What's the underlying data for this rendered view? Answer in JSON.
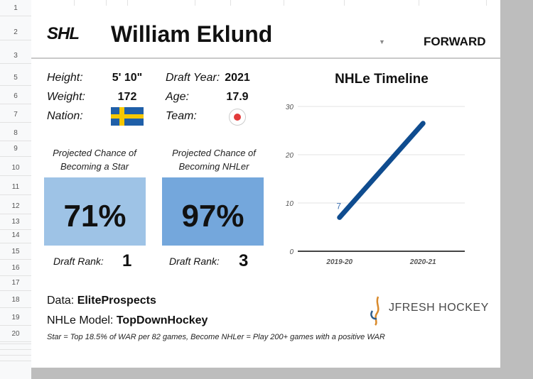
{
  "spreadsheet": {
    "row_numbers": [
      "1",
      "2",
      "3",
      "5",
      "6",
      "7",
      "8",
      "9",
      "10",
      "11",
      "12",
      "13",
      "14",
      "15",
      "16",
      "17",
      "18",
      "19",
      "20"
    ]
  },
  "card": {
    "logo": "SHL",
    "player_name": "William Eklund",
    "position": "FORWARD",
    "bio": {
      "height_label": "Height:",
      "height": "5' 10\"",
      "weight_label": "Weight:",
      "weight": "172",
      "nation_label": "Nation:",
      "nation_flag": "sweden-flag-icon",
      "draft_year_label": "Draft Year:",
      "draft_year": "2021",
      "age_label": "Age:",
      "age": "17.9",
      "team_label": "Team:",
      "team_logo": "djurgarden-logo-icon"
    },
    "star": {
      "title_line1": "Projected Chance of",
      "title_line2": "Becoming a Star",
      "percent": "71%",
      "rank_label": "Draft Rank:",
      "rank": "1"
    },
    "nhler": {
      "title_line1": "Projected Chance of",
      "title_line2": "Becoming NHLer",
      "percent": "97%",
      "rank_label": "Draft Rank:",
      "rank": "3"
    },
    "data_label": "Data: ",
    "data_source": "EliteProspects",
    "model_label": "NHLe Model: ",
    "model_source": "TopDownHockey",
    "footnote": "Star = Top 18.5% of WAR per 82 games, Become NHLer = Play 200+ games with a positive WAR",
    "brand": "JFRESH HOCKEY",
    "colors": {
      "star_box": "#9ec3e6",
      "nhler_box": "#74a7dc",
      "line": "#0f4c8f"
    }
  },
  "chart_data": {
    "type": "line",
    "title": "NHLe Timeline",
    "categories": [
      "2019-20",
      "2020-21"
    ],
    "series": [
      {
        "values": [
          7,
          26.5
        ]
      }
    ],
    "data_labels": [
      "7",
      ""
    ],
    "yticks": [
      "0",
      "10",
      "20",
      "30"
    ],
    "ylim": [
      0,
      30
    ],
    "grid": true
  }
}
